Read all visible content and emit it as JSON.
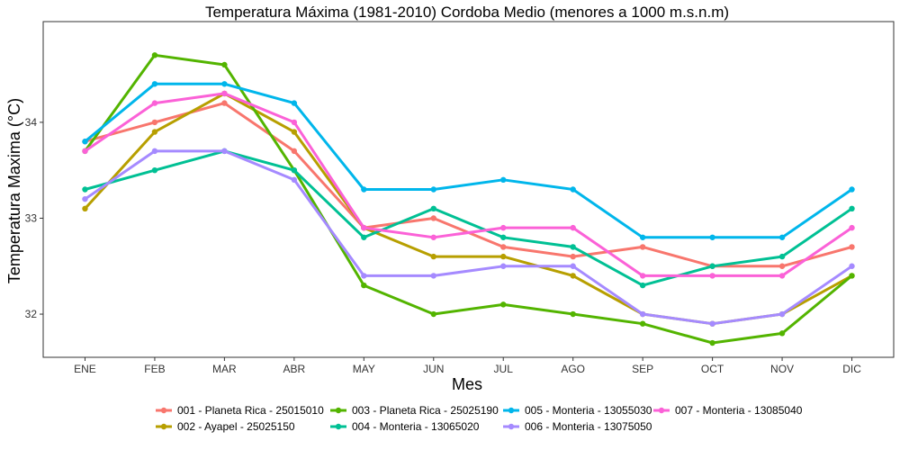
{
  "chart_data": {
    "type": "line",
    "title": "Temperatura Máxima (1981-2010) Cordoba Medio (menores a 1000 m.s.n.m)",
    "xlabel": "Mes",
    "ylabel": "Temperatura Maxima (°C)",
    "categories": [
      "ENE",
      "FEB",
      "MAR",
      "ABR",
      "MAY",
      "JUN",
      "JUL",
      "AGO",
      "SEP",
      "OCT",
      "NOV",
      "DIC"
    ],
    "ylim": [
      31.55,
      35.05
    ],
    "yticks": [
      32,
      33,
      34
    ],
    "grid": false,
    "legend_position": "bottom",
    "series": [
      {
        "name": "001 - Planeta Rica - 25015010",
        "color": "#F8766D",
        "values": [
          33.8,
          34.0,
          34.2,
          33.7,
          32.9,
          33.0,
          32.7,
          32.6,
          32.7,
          32.5,
          32.5,
          32.7
        ]
      },
      {
        "name": "002 - Ayapel - 25025150",
        "color": "#B79F00",
        "values": [
          33.1,
          33.9,
          34.3,
          33.9,
          32.9,
          32.6,
          32.6,
          32.4,
          32.0,
          31.9,
          32.0,
          32.4
        ]
      },
      {
        "name": "003 - Planeta Rica - 25025190",
        "color": "#53B400",
        "values": [
          33.7,
          34.7,
          34.6,
          33.5,
          32.3,
          32.0,
          32.1,
          32.0,
          31.9,
          31.7,
          31.8,
          32.4
        ]
      },
      {
        "name": "004 - Monteria - 13065020",
        "color": "#00C094",
        "values": [
          33.3,
          33.5,
          33.7,
          33.5,
          32.8,
          33.1,
          32.8,
          32.7,
          32.3,
          32.5,
          32.6,
          33.1
        ]
      },
      {
        "name": "005 - Monteria - 13055030",
        "color": "#00B6EB",
        "values": [
          33.8,
          34.4,
          34.4,
          34.2,
          33.3,
          33.3,
          33.4,
          33.3,
          32.8,
          32.8,
          32.8,
          33.3
        ]
      },
      {
        "name": "006 - Monteria - 13075050",
        "color": "#A58AFF",
        "values": [
          33.2,
          33.7,
          33.7,
          33.4,
          32.4,
          32.4,
          32.5,
          32.5,
          32.0,
          31.9,
          32.0,
          32.5
        ]
      },
      {
        "name": "007 - Monteria - 13085040",
        "color": "#FB61D7",
        "values": [
          33.7,
          34.2,
          34.3,
          34.0,
          32.9,
          32.8,
          32.9,
          32.9,
          32.4,
          32.4,
          32.4,
          32.9
        ]
      }
    ]
  }
}
